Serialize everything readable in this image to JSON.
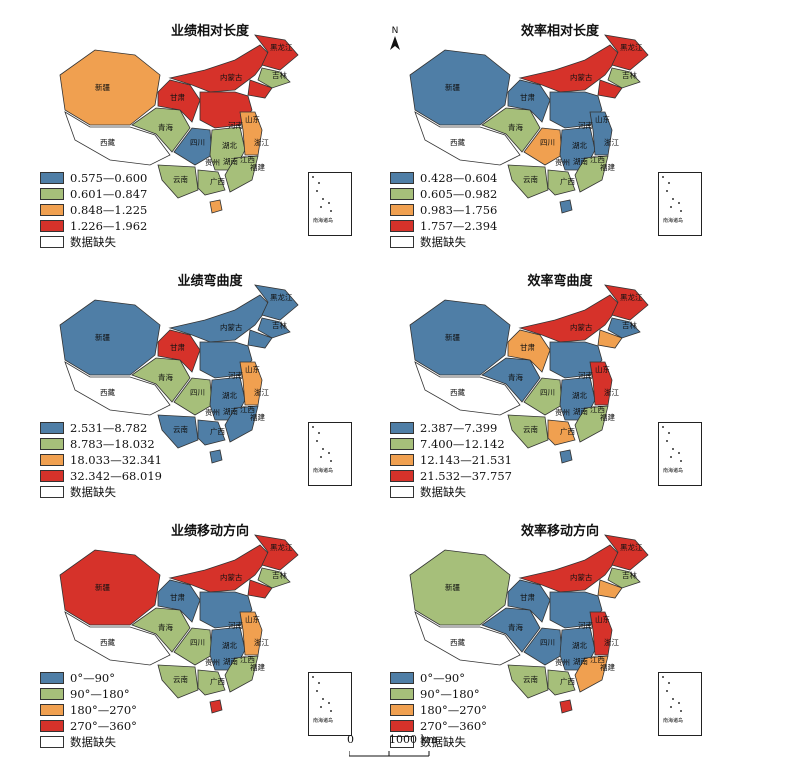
{
  "north_label": "N",
  "scale": {
    "zero": "0",
    "distance": "1000 km"
  },
  "inset_label": "南海诸岛",
  "colors": {
    "blue": "#4f7ea6",
    "green": "#a6bf7a",
    "orange": "#f0a050",
    "red": "#d6322a",
    "missing": "#ffffff",
    "stroke": "#333333"
  },
  "panels": [
    {
      "title": "业绩相对长度",
      "legend": [
        "0.575—0.600",
        "0.601—0.847",
        "0.848—1.225",
        "1.226—1.962",
        "数据缺失"
      ],
      "fills": {
        "xinjiang": "orange",
        "xizang": "missing",
        "qinghai": "green",
        "gansu": "red",
        "neimenggu": "red",
        "heilongjiang": "red",
        "jilin": "green",
        "liaoning": "red",
        "north": "red",
        "sichuan": "blue",
        "yunnan": "green",
        "central": "green",
        "guangxi": "green",
        "east": "orange",
        "south": "green",
        "hainan": "orange"
      }
    },
    {
      "title": "效率相对长度",
      "legend": [
        "0.428—0.604",
        "0.605—0.982",
        "0.983—1.756",
        "1.757—2.394",
        "数据缺失"
      ],
      "fills": {
        "xinjiang": "blue",
        "xizang": "missing",
        "qinghai": "green",
        "gansu": "blue",
        "neimenggu": "red",
        "heilongjiang": "red",
        "jilin": "green",
        "liaoning": "red",
        "north": "blue",
        "sichuan": "orange",
        "yunnan": "green",
        "central": "blue",
        "guangxi": "green",
        "east": "blue",
        "south": "green",
        "hainan": "blue"
      }
    },
    {
      "title": "业绩弯曲度",
      "legend": [
        "2.531—8.782",
        "8.783—18.032",
        "18.033—32.341",
        "32.342—68.019",
        "数据缺失"
      ],
      "fills": {
        "xinjiang": "blue",
        "xizang": "missing",
        "qinghai": "green",
        "gansu": "red",
        "neimenggu": "blue",
        "heilongjiang": "blue",
        "jilin": "blue",
        "liaoning": "blue",
        "north": "blue",
        "sichuan": "green",
        "yunnan": "blue",
        "central": "blue",
        "guangxi": "blue",
        "east": "orange",
        "south": "blue",
        "hainan": "blue"
      }
    },
    {
      "title": "效率弯曲度",
      "legend": [
        "2.387—7.399",
        "7.400—12.142",
        "12.143—21.531",
        "21.532—37.757",
        "数据缺失"
      ],
      "fills": {
        "xinjiang": "blue",
        "xizang": "missing",
        "qinghai": "blue",
        "gansu": "orange",
        "neimenggu": "red",
        "heilongjiang": "red",
        "jilin": "blue",
        "liaoning": "orange",
        "north": "blue",
        "sichuan": "green",
        "yunnan": "green",
        "central": "blue",
        "guangxi": "orange",
        "east": "red",
        "south": "green",
        "hainan": "blue"
      }
    },
    {
      "title": "业绩移动方向",
      "legend": [
        "0°—90°",
        "90°—180°",
        "180°—270°",
        "270°—360°",
        "数据缺失"
      ],
      "fills": {
        "xinjiang": "red",
        "xizang": "missing",
        "qinghai": "green",
        "gansu": "blue",
        "neimenggu": "red",
        "heilongjiang": "red",
        "jilin": "green",
        "liaoning": "red",
        "north": "blue",
        "sichuan": "green",
        "yunnan": "green",
        "central": "blue",
        "guangxi": "green",
        "east": "orange",
        "south": "green",
        "hainan": "red"
      }
    },
    {
      "title": "效率移动方向",
      "legend": [
        "0°—90°",
        "90°—180°",
        "180°—270°",
        "270°—360°",
        "数据缺失"
      ],
      "fills": {
        "xinjiang": "green",
        "xizang": "missing",
        "qinghai": "blue",
        "gansu": "blue",
        "neimenggu": "red",
        "heilongjiang": "red",
        "jilin": "green",
        "liaoning": "orange",
        "north": "blue",
        "sichuan": "blue",
        "yunnan": "green",
        "central": "blue",
        "guangxi": "green",
        "east": "red",
        "south": "orange",
        "hainan": "red"
      }
    }
  ],
  "province_labels": {
    "xinjiang": "新疆",
    "xizang": "西藏",
    "qinghai": "青海",
    "gansu": "甘肃",
    "neimenggu": "内蒙古",
    "heilongjiang": "黑龙江",
    "jilin": "吉林",
    "shandong": "山东",
    "henan": "河南",
    "sichuan": "四川",
    "hubei": "湖北",
    "jiangxi": "江西",
    "guizhou": "贵州",
    "yunnan": "云南",
    "guangxi": "广西",
    "hunan": "湖南",
    "fujian": "福建",
    "zhejiang": "浙江"
  }
}
